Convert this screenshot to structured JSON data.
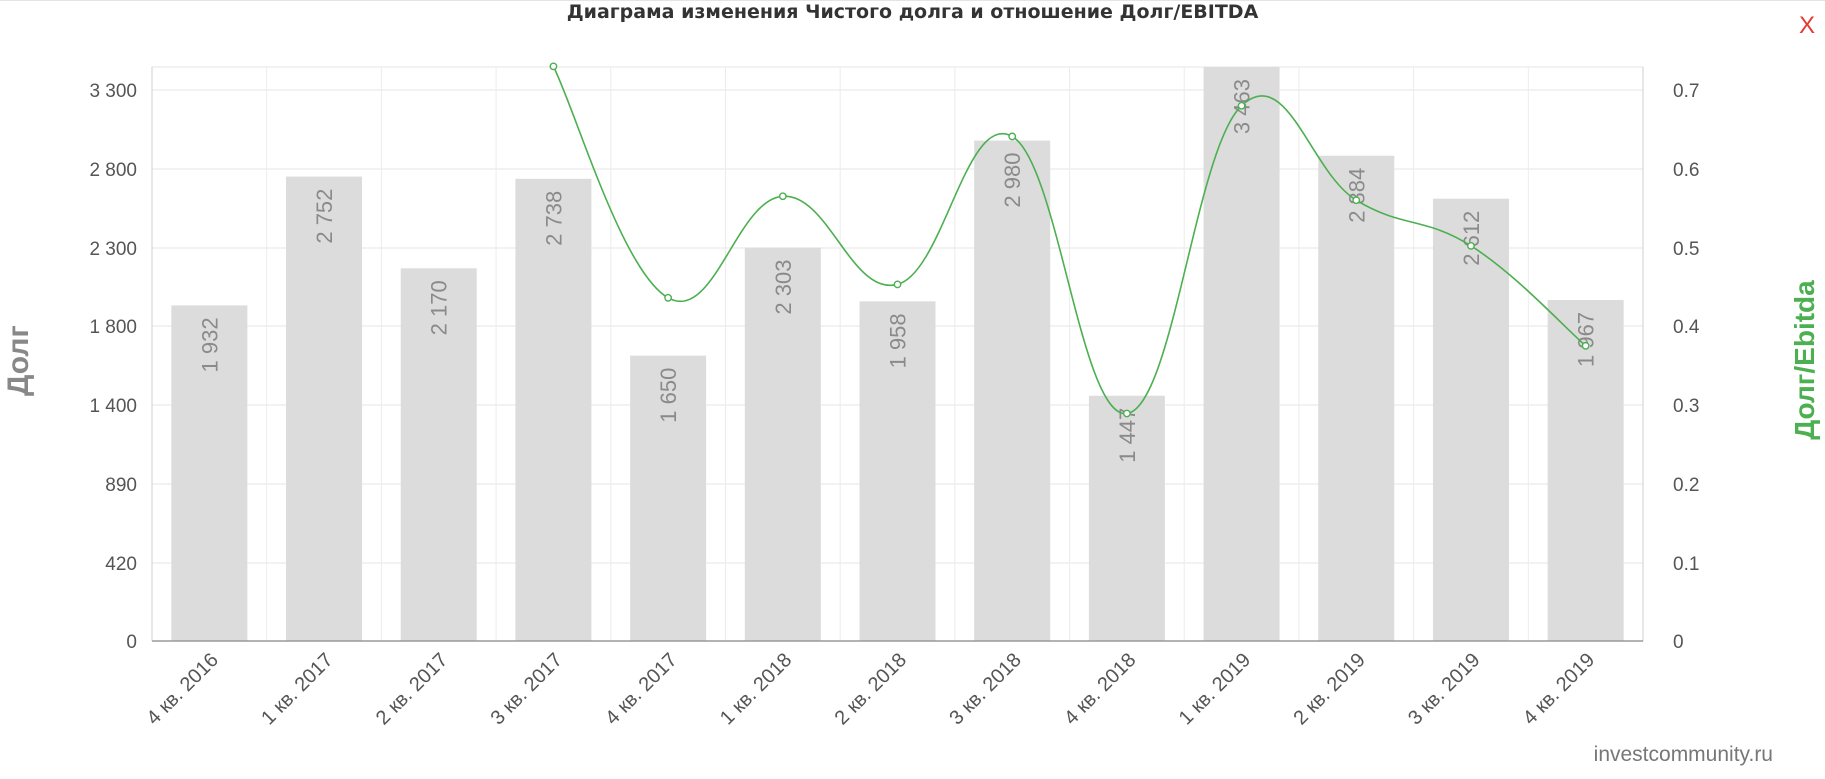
{
  "chart_data": {
    "type": "bar",
    "title": "Диаграма изменения Чистого долга и отношение Долг/EBITDA",
    "categories": [
      "4 кв. 2016",
      "1 кв. 2017",
      "2 кв. 2017",
      "3 кв. 2017",
      "4 кв. 2017",
      "1 кв. 2018",
      "2 кв. 2018",
      "3 кв. 2018",
      "4 кв. 2018",
      "1 кв. 2019",
      "2 кв. 2019",
      "3 кв. 2019",
      "4 кв. 2019"
    ],
    "series": [
      {
        "name": "Долг",
        "type": "bar",
        "axis": "left",
        "color": "#dcdcdc",
        "values": [
          1932,
          2752,
          2170,
          2738,
          1650,
          2303,
          1958,
          2980,
          1447,
          3463,
          2884,
          2612,
          1967
        ],
        "labels": [
          "1 932",
          "2 752",
          "2 170",
          "2 738",
          "1 650",
          "2 303",
          "1 958",
          "2 980",
          "1 447",
          "3 463",
          "2 884",
          "2 612",
          "1 967"
        ]
      },
      {
        "name": "Долг/Ebitda",
        "type": "line",
        "axis": "right",
        "color": "#4caf50",
        "values": [
          null,
          null,
          null,
          0.73,
          0.436,
          0.565,
          0.453,
          0.641,
          0.289,
          0.68,
          0.56,
          0.502,
          0.375
        ]
      }
    ],
    "y_left": {
      "label": "Долг",
      "ticks": [
        "0",
        "420",
        "890",
        "1 400",
        "1 800",
        "2 300",
        "2 800",
        "3 300"
      ]
    },
    "y_right": {
      "label": "Долг/Ebitda",
      "ticks": [
        "0",
        "0.1",
        "0.2",
        "0.3",
        "0.4",
        "0.5",
        "0.6",
        "0.7"
      ],
      "ylim": [
        0,
        0.7
      ]
    },
    "grid": true,
    "legend": "none"
  },
  "close_label": "X",
  "watermark": "investcommunity.ru"
}
